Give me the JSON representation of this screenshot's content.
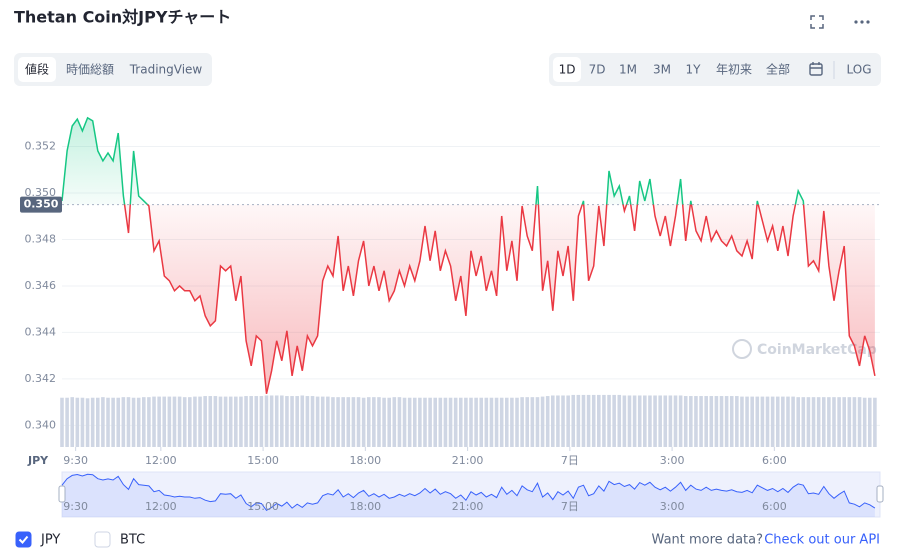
{
  "ui": {
    "title": "Thetan Coin対JPYチャート",
    "tabs": [
      "値段",
      "時価総額",
      "TradingView"
    ],
    "ranges": [
      "1D",
      "7D",
      "1M",
      "3M",
      "1Y",
      "年初来",
      "全部"
    ],
    "log": "LOG",
    "legend": [
      {
        "label": "JPY",
        "checked": true
      },
      {
        "label": "BTC",
        "checked": false
      }
    ],
    "more_text": "Want more data?",
    "more_link": "Check out our API",
    "watermark": "CoinMarketCap"
  },
  "chart_data": {
    "type": "line",
    "y_label": "JPY",
    "xlim": [
      9.1,
      33.1
    ],
    "ylim": [
      0.3392,
      0.354
    ],
    "y3lim": [
      0,
      100
    ],
    "xticks": [
      {
        "value": 9.5,
        "label": "9:30"
      },
      {
        "value": 12,
        "label": "12:00"
      },
      {
        "value": 15,
        "label": "15:00"
      },
      {
        "value": 18,
        "label": "18:00"
      },
      {
        "value": 21,
        "label": "21:00"
      },
      {
        "value": 24,
        "label": "7日"
      },
      {
        "value": 27,
        "label": "3:00"
      },
      {
        "value": 30,
        "label": "6:00"
      }
    ],
    "yticks": [
      {
        "value": 0.34,
        "label": "0.340"
      },
      0.342,
      0.344,
      0.346,
      0.348,
      {
        "value": 0.35,
        "label": "0.350"
      },
      0.352
    ],
    "grid": true,
    "reference": {
      "value": 0.3495,
      "label": "0.350"
    },
    "up_color": "#16c784",
    "down_color": "#ea3943",
    "navigator_color": "#3861fb",
    "volume_color": "#cfd6e4",
    "x": [
      9.1,
      9.25,
      9.4,
      9.55,
      9.7,
      9.85,
      10,
      10.15,
      10.3,
      10.45,
      10.6,
      10.75,
      10.9,
      11.05,
      11.2,
      11.35,
      11.5,
      11.65,
      11.8,
      11.95,
      12.1,
      12.25,
      12.4,
      12.55,
      12.7,
      12.85,
      13,
      13.15,
      13.3,
      13.45,
      13.6,
      13.75,
      13.9,
      14.05,
      14.2,
      14.35,
      14.5,
      14.65,
      14.8,
      14.95,
      15.1,
      15.25,
      15.4,
      15.55,
      15.7,
      15.85,
      16,
      16.15,
      16.3,
      16.45,
      16.6,
      16.75,
      16.9,
      17.05,
      17.2,
      17.35,
      17.5,
      17.65,
      17.8,
      17.95,
      18.1,
      18.25,
      18.4,
      18.55,
      18.7,
      18.85,
      19,
      19.15,
      19.3,
      19.45,
      19.6,
      19.75,
      19.9,
      20.05,
      20.2,
      20.35,
      20.5,
      20.65,
      20.8,
      20.95,
      21.1,
      21.25,
      21.4,
      21.55,
      21.7,
      21.85,
      22,
      22.15,
      22.3,
      22.45,
      22.6,
      22.75,
      22.9,
      23.05,
      23.2,
      23.35,
      23.5,
      23.65,
      23.8,
      23.95,
      24.1,
      24.25,
      24.4,
      24.55,
      24.7,
      24.85,
      25,
      25.15,
      25.3,
      25.45,
      25.6,
      25.75,
      25.9,
      26.05,
      26.2,
      26.35,
      26.5,
      26.65,
      26.8,
      26.95,
      27.1,
      27.25,
      27.4,
      27.55,
      27.7,
      27.85,
      28,
      28.15,
      28.3,
      28.45,
      28.6,
      28.75,
      28.9,
      29.05,
      29.2,
      29.35,
      29.5,
      29.65,
      29.8,
      29.95,
      30.1,
      30.25,
      30.4,
      30.55,
      30.7,
      30.85,
      31,
      31.15,
      31.3,
      31.45,
      31.6,
      31.75,
      31.9,
      32.05,
      32.2,
      32.35,
      32.5,
      32.65,
      32.8,
      32.95
    ],
    "series": [
      {
        "values": [
          0.34966,
          0.35181,
          0.35288,
          0.35318,
          0.35267,
          0.35323,
          0.3531,
          0.35181,
          0.35138,
          0.35172,
          0.35138,
          0.35258,
          0.34987,
          0.34828,
          0.35181,
          0.34987,
          0.34966,
          0.34944,
          0.34751,
          0.34794,
          0.34643,
          0.34622,
          0.34579,
          0.346,
          0.34579,
          0.34579,
          0.34536,
          0.34557,
          0.34471,
          0.34428,
          0.3445,
          0.34686,
          0.34665,
          0.34686,
          0.34536,
          0.34643,
          0.34364,
          0.34256,
          0.34385,
          0.34364,
          0.34136,
          0.34235,
          0.34364,
          0.34278,
          0.34407,
          0.34213,
          0.34342,
          0.34235,
          0.34385,
          0.34342,
          0.34385,
          0.34622,
          0.34686,
          0.34643,
          0.34815,
          0.34579,
          0.34686,
          0.34557,
          0.34708,
          0.34794,
          0.346,
          0.34686,
          0.34579,
          0.34665,
          0.34536,
          0.34579,
          0.34665,
          0.346,
          0.34686,
          0.34622,
          0.34708,
          0.34858,
          0.34708,
          0.34837,
          0.34665,
          0.34751,
          0.34686,
          0.34536,
          0.34643,
          0.34471,
          0.34751,
          0.34643,
          0.34729,
          0.34579,
          0.34665,
          0.34557,
          0.34901,
          0.34665,
          0.34794,
          0.34622,
          0.34944,
          0.34815,
          0.34751,
          0.3503,
          0.34579,
          0.34708,
          0.34493,
          0.34751,
          0.34643,
          0.34772,
          0.34536,
          0.34901,
          0.34966,
          0.34622,
          0.34686,
          0.34944,
          0.34772,
          0.35095,
          0.34987,
          0.3503,
          0.34923,
          0.34987,
          0.34837,
          0.35052,
          0.34966,
          0.3506,
          0.34901,
          0.34815,
          0.34901,
          0.34772,
          0.34901,
          0.3506,
          0.34794,
          0.34966,
          0.34837,
          0.34794,
          0.34901,
          0.34794,
          0.34837,
          0.34794,
          0.34772,
          0.34815,
          0.34751,
          0.34729,
          0.34794,
          0.34716,
          0.34966,
          0.3488,
          0.34794,
          0.34858,
          0.34751,
          0.34858,
          0.34729,
          0.34901,
          0.35009,
          0.34966,
          0.34686,
          0.34708,
          0.34665,
          0.34923,
          0.34686,
          0.34536,
          0.34665,
          0.34772,
          0.34385,
          0.34342,
          0.34256,
          0.34385,
          0.34321,
          0.34213
        ]
      },
      {
        "axis": "y3",
        "values": [
          88,
          88,
          89,
          88,
          88,
          87,
          88,
          88,
          89,
          88,
          88,
          88,
          89,
          89,
          88,
          88,
          89,
          89,
          90,
          90,
          90,
          90,
          90,
          90,
          89,
          89,
          90,
          90,
          91,
          91,
          91,
          90,
          90,
          90,
          90,
          90,
          91,
          91,
          91,
          91,
          92,
          92,
          92,
          92,
          91,
          91,
          91,
          92,
          91,
          91,
          90,
          90,
          90,
          89,
          89,
          89,
          89,
          89,
          89,
          88,
          89,
          89,
          89,
          88,
          88,
          89,
          89,
          88,
          88,
          88,
          88,
          88,
          88,
          88,
          88,
          88,
          88,
          88,
          88,
          88,
          88,
          88,
          88,
          88,
          88,
          88,
          88,
          88,
          88,
          88,
          89,
          89,
          89,
          89,
          90,
          91,
          92,
          92,
          92,
          92,
          93,
          93,
          93,
          93,
          93,
          93,
          93,
          93,
          93,
          93,
          92,
          92,
          92,
          92,
          92,
          92,
          92,
          92,
          92,
          92,
          92,
          92,
          91,
          91,
          91,
          91,
          91,
          91,
          91,
          91,
          91,
          91,
          91,
          90,
          90,
          90,
          90,
          90,
          90,
          90,
          90,
          90,
          90,
          90,
          89,
          89,
          89,
          89,
          89,
          89,
          89,
          89,
          89,
          89,
          89,
          89,
          89,
          88,
          88,
          88
        ]
      }
    ]
  }
}
